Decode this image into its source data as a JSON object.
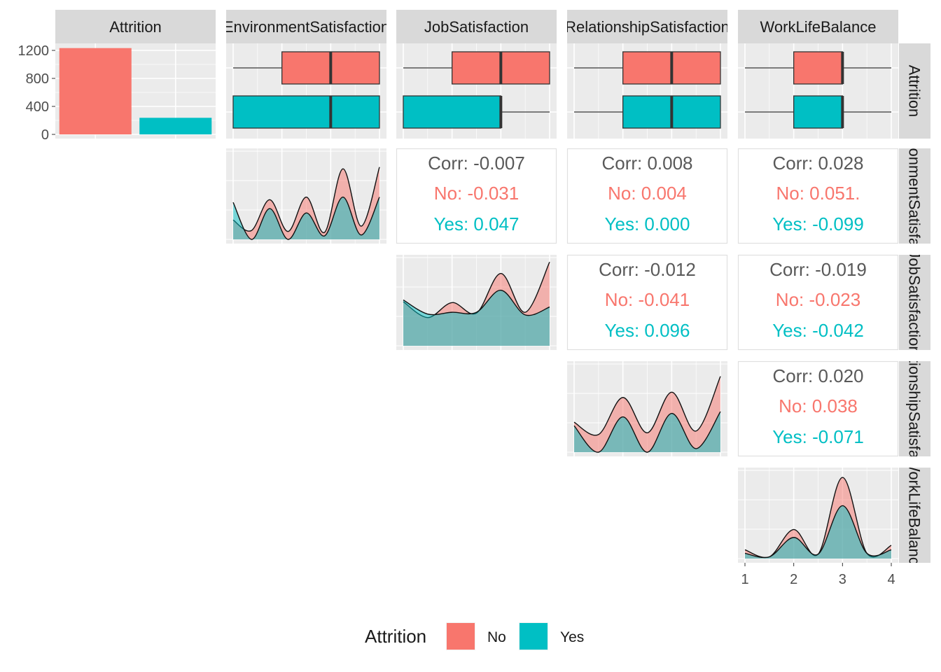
{
  "chart_data": {
    "type": "pairs",
    "variables": [
      "Attrition",
      "EnvironmentSatisfaction",
      "JobSatisfaction",
      "RelationshipSatisfaction",
      "WorkLifeBalance"
    ],
    "row_strip_labels": [
      "Attrition",
      "EnvironmentSatisfaction",
      "JobSatisfaction",
      "RelationshipSatisfaction",
      "WorkLifeBalance"
    ],
    "groups": [
      "No",
      "Yes"
    ],
    "colors": {
      "No": "#F8766D",
      "Yes": "#00BFC4",
      "panel_bg": "#EBEBEB",
      "strip_bg": "#D9D9D9",
      "grid": "#FFFFFF",
      "corr_text": "#595959"
    },
    "legend": {
      "title": "Attrition",
      "position": "bottom",
      "items": [
        "No",
        "Yes"
      ]
    },
    "bar": {
      "categories": [
        "No",
        "Yes"
      ],
      "values": [
        1233,
        237
      ],
      "yticks": [
        0,
        400,
        800,
        1200
      ],
      "ylim": [
        0,
        1300
      ]
    },
    "boxplots": [
      {
        "variable": "EnvironmentSatisfaction",
        "No": {
          "min": 1,
          "q1": 2,
          "median": 3,
          "q3": 4,
          "max": 4
        },
        "Yes": {
          "min": 1,
          "q1": 1,
          "median": 3,
          "q3": 4,
          "max": 4
        }
      },
      {
        "variable": "JobSatisfaction",
        "No": {
          "min": 1,
          "q1": 2,
          "median": 3,
          "q3": 4,
          "max": 4
        },
        "Yes": {
          "min": 1,
          "q1": 1,
          "median": 3,
          "q3": 3,
          "max": 4
        }
      },
      {
        "variable": "RelationshipSatisfaction",
        "No": {
          "min": 1,
          "q1": 2,
          "median": 3,
          "q3": 4,
          "max": 4
        },
        "Yes": {
          "min": 1,
          "q1": 2,
          "median": 3,
          "q3": 4,
          "max": 4
        }
      },
      {
        "variable": "WorkLifeBalance",
        "No": {
          "min": 1,
          "q1": 2,
          "median": 3,
          "q3": 3,
          "max": 4
        },
        "Yes": {
          "min": 1,
          "q1": 2,
          "median": 3,
          "q3": 3,
          "max": 4
        }
      }
    ],
    "densities": [
      {
        "variable": "EnvironmentSatisfaction",
        "No": [
          0.22,
          0.1,
          0.45,
          0.09,
          0.48,
          0.08,
          0.8,
          0.15,
          0.82
        ],
        "Yes": [
          0.42,
          0.0,
          0.35,
          0.0,
          0.3,
          0.04,
          0.48,
          0.05,
          0.48
        ]
      },
      {
        "variable": "JobSatisfaction",
        "No": [
          0.5,
          0.32,
          0.49,
          0.37,
          0.82,
          0.38,
          0.95
        ],
        "Yes": [
          0.52,
          0.36,
          0.38,
          0.38,
          0.63,
          0.35,
          0.44
        ]
      },
      {
        "variable": "RelationshipSatisfaction",
        "No": [
          0.34,
          0.2,
          0.62,
          0.22,
          0.68,
          0.24,
          0.86
        ],
        "Yes": [
          0.3,
          0.0,
          0.4,
          0.0,
          0.44,
          0.04,
          0.46
        ]
      },
      {
        "variable": "WorkLifeBalance",
        "No": [
          0.1,
          0.02,
          0.33,
          0.05,
          0.92,
          0.06,
          0.15
        ],
        "Yes": [
          0.06,
          0.02,
          0.24,
          0.05,
          0.6,
          0.06,
          0.1
        ]
      }
    ],
    "x_axis": {
      "variable": "WorkLifeBalance",
      "ticks": [
        1,
        2,
        3,
        4
      ],
      "xlim": [
        1,
        4
      ]
    },
    "correlations": [
      {
        "row": "EnvironmentSatisfaction",
        "col": "JobSatisfaction",
        "corr": "Corr: -0.007",
        "no": "No: -0.031",
        "yes": "Yes: 0.047"
      },
      {
        "row": "EnvironmentSatisfaction",
        "col": "RelationshipSatisfaction",
        "corr": "Corr: 0.008",
        "no": "No: 0.004",
        "yes": "Yes: 0.000"
      },
      {
        "row": "EnvironmentSatisfaction",
        "col": "WorkLifeBalance",
        "corr": "Corr: 0.028",
        "no": "No: 0.051.",
        "yes": "Yes: -0.099"
      },
      {
        "row": "JobSatisfaction",
        "col": "RelationshipSatisfaction",
        "corr": "Corr: -0.012",
        "no": "No: -0.041",
        "yes": "Yes: 0.096"
      },
      {
        "row": "JobSatisfaction",
        "col": "WorkLifeBalance",
        "corr": "Corr: -0.019",
        "no": "No: -0.023",
        "yes": "Yes: -0.042"
      },
      {
        "row": "RelationshipSatisfaction",
        "col": "WorkLifeBalance",
        "corr": "Corr: 0.020",
        "no": "No: 0.038",
        "yes": "Yes: -0.071"
      }
    ]
  }
}
